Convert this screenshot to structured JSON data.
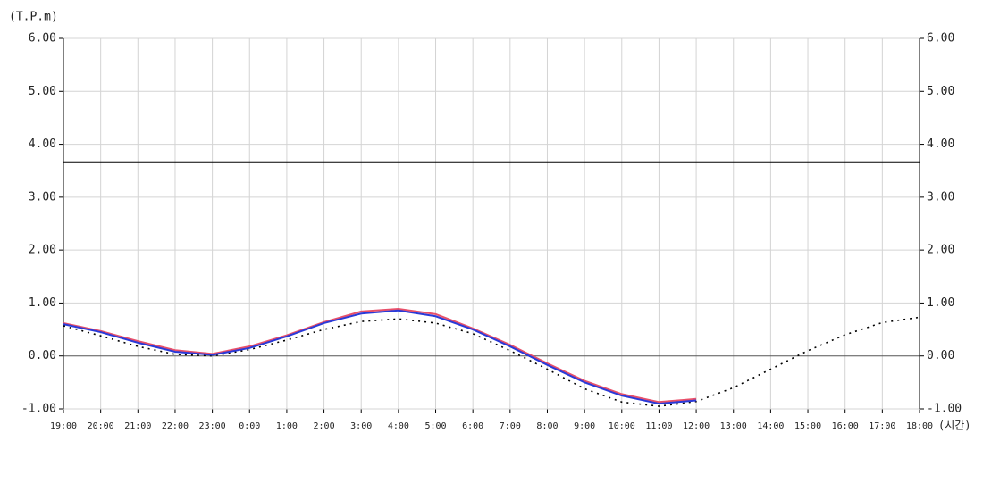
{
  "chart_data": {
    "type": "line",
    "y_label": "(T.P.m)",
    "x_label": "(시간)",
    "categories": [
      "19:00",
      "20:00",
      "21:00",
      "22:00",
      "23:00",
      "0:00",
      "1:00",
      "2:00",
      "3:00",
      "4:00",
      "5:00",
      "6:00",
      "7:00",
      "8:00",
      "9:00",
      "10:00",
      "11:00",
      "12:00",
      "13:00",
      "14:00",
      "15:00",
      "16:00",
      "17:00",
      "18:00"
    ],
    "series": [
      {
        "color": "#000000",
        "dash": true,
        "values": [
          0.57,
          0.38,
          0.18,
          0.03,
          0.0,
          0.12,
          0.3,
          0.5,
          0.65,
          0.7,
          0.62,
          0.42,
          0.1,
          -0.25,
          -0.62,
          -0.87,
          -0.95,
          -0.86,
          -0.6,
          -0.25,
          0.1,
          0.4,
          0.63,
          0.73
        ]
      },
      {
        "color": "#e8506a",
        "values": [
          0.62,
          0.47,
          0.28,
          0.11,
          0.04,
          0.18,
          0.39,
          0.64,
          0.84,
          0.89,
          0.79,
          0.52,
          0.21,
          -0.14,
          -0.47,
          -0.72,
          -0.87,
          -0.81,
          null,
          null,
          null,
          null,
          null,
          null
        ]
      },
      {
        "color": "#2a3ad8",
        "values": [
          0.6,
          0.45,
          0.25,
          0.08,
          0.02,
          0.15,
          0.37,
          0.62,
          0.8,
          0.86,
          0.75,
          0.5,
          0.18,
          -0.17,
          -0.5,
          -0.75,
          -0.9,
          -0.84,
          null,
          null,
          null,
          null,
          null,
          null
        ]
      }
    ],
    "reference_line": 3.66,
    "ylim": [
      -1,
      6
    ],
    "yticks": [
      {
        "value": -1,
        "label": "-1.00"
      },
      {
        "value": 0,
        "label": "0.00"
      },
      {
        "value": 1,
        "label": "1.00"
      },
      {
        "value": 2,
        "label": "2.00"
      },
      {
        "value": 3,
        "label": "3.00"
      },
      {
        "value": 4,
        "label": "4.00"
      },
      {
        "value": 5,
        "label": "5.00"
      },
      {
        "value": 6,
        "label": "6.00"
      }
    ],
    "grid": true
  }
}
